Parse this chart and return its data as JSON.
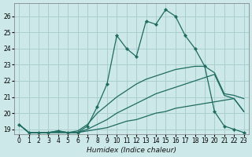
{
  "xlabel": "Humidex (Indice chaleur)",
  "background_color": "#cce8e8",
  "grid_color": "#aacfcf",
  "line_color": "#1e6b60",
  "xlim": [
    -0.5,
    23.5
  ],
  "ylim": [
    18.7,
    26.8
  ],
  "xticks": [
    0,
    1,
    2,
    3,
    4,
    5,
    6,
    7,
    8,
    9,
    10,
    11,
    12,
    13,
    14,
    15,
    16,
    17,
    18,
    19,
    20,
    21,
    22,
    23
  ],
  "yticks": [
    19,
    20,
    21,
    22,
    23,
    24,
    25,
    26
  ],
  "series": [
    {
      "x": [
        0,
        1,
        2,
        3,
        4,
        5,
        6,
        7,
        8,
        9,
        10,
        11,
        12,
        13,
        14,
        15,
        16,
        17,
        18,
        19,
        20,
        21,
        22,
        23
      ],
      "y": [
        19.3,
        18.8,
        18.8,
        18.8,
        18.8,
        18.8,
        18.8,
        18.9,
        19.0,
        19.1,
        19.3,
        19.5,
        19.6,
        19.8,
        20.0,
        20.1,
        20.3,
        20.4,
        20.5,
        20.6,
        20.7,
        20.8,
        20.9,
        20.1
      ],
      "marker": false
    },
    {
      "x": [
        0,
        1,
        2,
        3,
        4,
        5,
        6,
        7,
        8,
        9,
        10,
        11,
        12,
        13,
        14,
        15,
        16,
        17,
        18,
        19,
        20,
        21,
        22,
        23
      ],
      "y": [
        19.3,
        18.8,
        18.8,
        18.8,
        18.8,
        18.8,
        18.8,
        19.0,
        19.3,
        19.6,
        20.0,
        20.3,
        20.6,
        20.9,
        21.2,
        21.4,
        21.6,
        21.8,
        22.0,
        22.2,
        22.4,
        21.1,
        20.9,
        20.1
      ],
      "marker": false
    },
    {
      "x": [
        0,
        1,
        2,
        3,
        4,
        5,
        6,
        7,
        8,
        9,
        10,
        11,
        12,
        13,
        14,
        15,
        16,
        17,
        18,
        19,
        20,
        21,
        22,
        23
      ],
      "y": [
        19.3,
        18.8,
        18.8,
        18.8,
        18.9,
        18.8,
        18.9,
        19.3,
        20.0,
        20.5,
        21.0,
        21.4,
        21.8,
        22.1,
        22.3,
        22.5,
        22.7,
        22.8,
        22.9,
        22.9,
        22.5,
        21.2,
        21.1,
        20.9
      ],
      "marker": false
    },
    {
      "x": [
        0,
        1,
        2,
        3,
        4,
        5,
        6,
        7,
        8,
        9,
        10,
        11,
        12,
        13,
        14,
        15,
        16,
        17,
        18,
        19,
        20,
        21,
        22,
        23
      ],
      "y": [
        19.3,
        18.8,
        18.8,
        18.8,
        18.9,
        18.8,
        18.8,
        19.2,
        20.4,
        21.8,
        24.8,
        24.0,
        23.5,
        25.7,
        25.5,
        26.4,
        26.0,
        24.8,
        24.0,
        22.9,
        20.1,
        19.2,
        19.0,
        18.8
      ],
      "marker": true
    }
  ]
}
